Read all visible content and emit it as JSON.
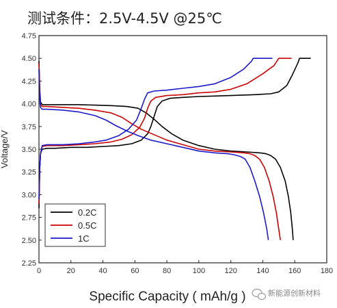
{
  "chart_data": {
    "type": "line",
    "title": "测试条件：2.5V-4.5V  @25℃",
    "xlabel": "Specific Capacity ( mAh/g )",
    "ylabel": "Voltage/V",
    "xlim": [
      0,
      180
    ],
    "ylim": [
      2.25,
      4.75
    ],
    "xticks": [
      0,
      20,
      40,
      60,
      80,
      100,
      120,
      140,
      160,
      180
    ],
    "yticks": [
      2.25,
      2.5,
      2.75,
      3.0,
      3.25,
      3.5,
      3.75,
      4.0,
      4.25,
      4.5,
      4.75
    ],
    "legend": {
      "position": "bottom-left"
    },
    "series": [
      {
        "name": "0.2C",
        "color": "#000000",
        "charge": [
          [
            0,
            2.85
          ],
          [
            0.5,
            3.3
          ],
          [
            1,
            3.45
          ],
          [
            2,
            3.5
          ],
          [
            5,
            3.51
          ],
          [
            10,
            3.51
          ],
          [
            20,
            3.52
          ],
          [
            30,
            3.52
          ],
          [
            40,
            3.53
          ],
          [
            50,
            3.54
          ],
          [
            58,
            3.56
          ],
          [
            64,
            3.6
          ],
          [
            68,
            3.67
          ],
          [
            70,
            3.75
          ],
          [
            72,
            3.86
          ],
          [
            74,
            3.97
          ],
          [
            77,
            4.03
          ],
          [
            82,
            4.06
          ],
          [
            90,
            4.07
          ],
          [
            100,
            4.08
          ],
          [
            110,
            4.085
          ],
          [
            120,
            4.09
          ],
          [
            135,
            4.1
          ],
          [
            145,
            4.11
          ],
          [
            150,
            4.13
          ],
          [
            155,
            4.2
          ],
          [
            158,
            4.3
          ],
          [
            162,
            4.45
          ],
          [
            163,
            4.5
          ],
          [
            170,
            4.5
          ]
        ],
        "discharge": [
          [
            0,
            4.47
          ],
          [
            0.5,
            4.15
          ],
          [
            1,
            4.02
          ],
          [
            2,
            3.99
          ],
          [
            5,
            3.99
          ],
          [
            15,
            3.99
          ],
          [
            25,
            3.99
          ],
          [
            35,
            3.985
          ],
          [
            45,
            3.98
          ],
          [
            55,
            3.97
          ],
          [
            62,
            3.95
          ],
          [
            67,
            3.9
          ],
          [
            72,
            3.83
          ],
          [
            77,
            3.75
          ],
          [
            83,
            3.67
          ],
          [
            90,
            3.6
          ],
          [
            100,
            3.54
          ],
          [
            110,
            3.5
          ],
          [
            120,
            3.48
          ],
          [
            130,
            3.47
          ],
          [
            138,
            3.46
          ],
          [
            142,
            3.45
          ],
          [
            145,
            3.43
          ],
          [
            148,
            3.39
          ],
          [
            151,
            3.3
          ],
          [
            154,
            3.15
          ],
          [
            156,
            2.98
          ],
          [
            157.5,
            2.8
          ],
          [
            158.5,
            2.62
          ],
          [
            159,
            2.5
          ]
        ]
      },
      {
        "name": "0.5C",
        "color": "#cc0000",
        "charge": [
          [
            0,
            2.9
          ],
          [
            0.5,
            3.3
          ],
          [
            1,
            3.45
          ],
          [
            2,
            3.53
          ],
          [
            5,
            3.54
          ],
          [
            15,
            3.54
          ],
          [
            25,
            3.55
          ],
          [
            35,
            3.56
          ],
          [
            45,
            3.58
          ],
          [
            52,
            3.61
          ],
          [
            58,
            3.66
          ],
          [
            63,
            3.74
          ],
          [
            66,
            3.84
          ],
          [
            68,
            3.95
          ],
          [
            70,
            4.03
          ],
          [
            73,
            4.07
          ],
          [
            80,
            4.09
          ],
          [
            90,
            4.1
          ],
          [
            100,
            4.12
          ],
          [
            110,
            4.13
          ],
          [
            120,
            4.16
          ],
          [
            130,
            4.22
          ],
          [
            140,
            4.33
          ],
          [
            147,
            4.42
          ],
          [
            150,
            4.5
          ],
          [
            158,
            4.5
          ]
        ],
        "discharge": [
          [
            0,
            4.45
          ],
          [
            0.5,
            4.1
          ],
          [
            1,
            3.99
          ],
          [
            2,
            3.97
          ],
          [
            5,
            3.97
          ],
          [
            15,
            3.96
          ],
          [
            25,
            3.95
          ],
          [
            35,
            3.93
          ],
          [
            45,
            3.9
          ],
          [
            52,
            3.85
          ],
          [
            58,
            3.78
          ],
          [
            64,
            3.72
          ],
          [
            72,
            3.66
          ],
          [
            80,
            3.6
          ],
          [
            90,
            3.55
          ],
          [
            100,
            3.5
          ],
          [
            110,
            3.48
          ],
          [
            120,
            3.47
          ],
          [
            128,
            3.46
          ],
          [
            132,
            3.45
          ],
          [
            135,
            3.43
          ],
          [
            138,
            3.39
          ],
          [
            141,
            3.3
          ],
          [
            144,
            3.15
          ],
          [
            146.5,
            2.98
          ],
          [
            148.5,
            2.8
          ],
          [
            150,
            2.62
          ],
          [
            151,
            2.5
          ]
        ]
      },
      {
        "name": "1C",
        "color": "#1a1acc",
        "charge": [
          [
            0,
            2.95
          ],
          [
            0.5,
            3.3
          ],
          [
            1,
            3.45
          ],
          [
            2,
            3.54
          ],
          [
            5,
            3.55
          ],
          [
            15,
            3.55
          ],
          [
            25,
            3.56
          ],
          [
            35,
            3.58
          ],
          [
            42,
            3.6
          ],
          [
            50,
            3.65
          ],
          [
            56,
            3.72
          ],
          [
            61,
            3.82
          ],
          [
            64,
            3.95
          ],
          [
            66,
            4.05
          ],
          [
            68,
            4.12
          ],
          [
            72,
            4.14
          ],
          [
            80,
            4.15
          ],
          [
            90,
            4.17
          ],
          [
            100,
            4.19
          ],
          [
            110,
            4.22
          ],
          [
            120,
            4.29
          ],
          [
            128,
            4.38
          ],
          [
            133,
            4.47
          ],
          [
            134,
            4.5
          ],
          [
            146,
            4.5
          ]
        ],
        "discharge": [
          [
            0,
            4.38
          ],
          [
            0.5,
            4.05
          ],
          [
            1,
            3.96
          ],
          [
            2,
            3.94
          ],
          [
            5,
            3.94
          ],
          [
            15,
            3.93
          ],
          [
            25,
            3.91
          ],
          [
            35,
            3.87
          ],
          [
            42,
            3.82
          ],
          [
            48,
            3.76
          ],
          [
            55,
            3.7
          ],
          [
            62,
            3.65
          ],
          [
            70,
            3.6
          ],
          [
            80,
            3.56
          ],
          [
            90,
            3.52
          ],
          [
            100,
            3.48
          ],
          [
            110,
            3.46
          ],
          [
            118,
            3.45
          ],
          [
            122,
            3.44
          ],
          [
            126,
            3.42
          ],
          [
            129,
            3.39
          ],
          [
            132,
            3.3
          ],
          [
            135,
            3.15
          ],
          [
            138,
            2.98
          ],
          [
            140.5,
            2.8
          ],
          [
            142.5,
            2.62
          ],
          [
            143.5,
            2.5
          ]
        ]
      }
    ]
  },
  "watermark": "新能源创新材料",
  "icon": "wechat-bubble-icon"
}
